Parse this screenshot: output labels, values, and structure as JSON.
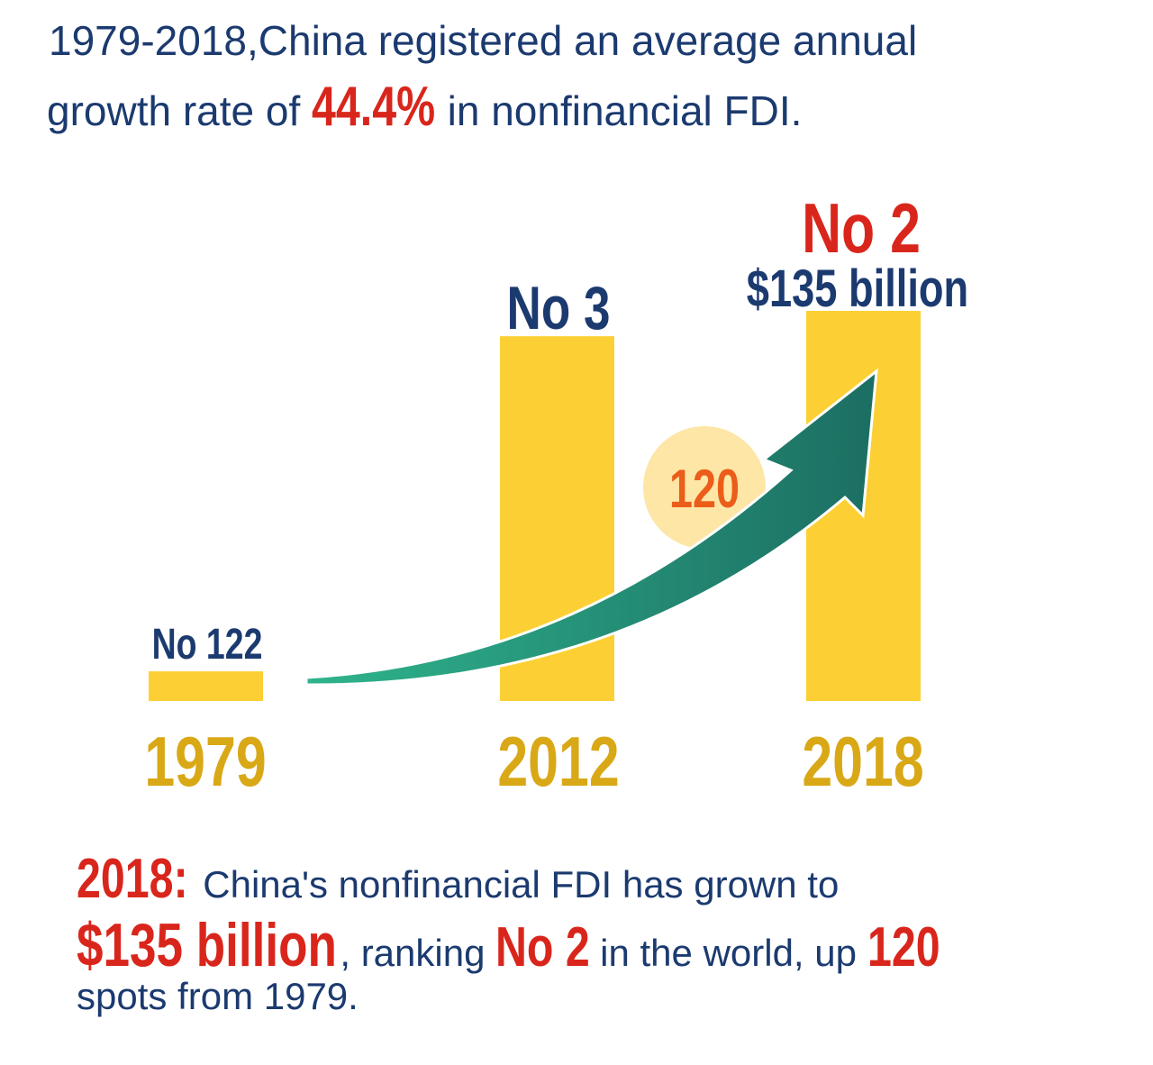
{
  "header": {
    "line1": "1979-2018,China registered an average annual",
    "line2_prefix": "growth rate of",
    "line2_highlight": "44.4%",
    "line2_suffix": "in nonfinancial FDI."
  },
  "chart_data": {
    "type": "bar",
    "categories": [
      "1979",
      "2012",
      "2018"
    ],
    "rank_labels": [
      "No 122",
      "No 3",
      "No 2"
    ],
    "ranks": [
      122,
      3,
      2
    ],
    "relative_values": [
      0.076,
      0.935,
      1.0
    ],
    "value_2018_label": "$135 billion",
    "value_2018_billion_usd": 135,
    "rank_change_label": "120",
    "rank_change": 120,
    "colors": {
      "bar": "#fcd034",
      "year": "#d9a816",
      "rank": "#1b3a6f",
      "highlight": "#d9261c",
      "badge": "#fde6a6",
      "badge_text": "#ec5d1a",
      "arrow": "#1f8a70"
    }
  },
  "footer": {
    "year": "2018:",
    "line1_rest": "China's nonfinancial FDI has grown to",
    "amount": "$135 billion",
    "ranking_text": ", ranking",
    "rank": "No 2",
    "world_text": "in the world, up",
    "spots": "120",
    "line3": "spots from 1979."
  }
}
